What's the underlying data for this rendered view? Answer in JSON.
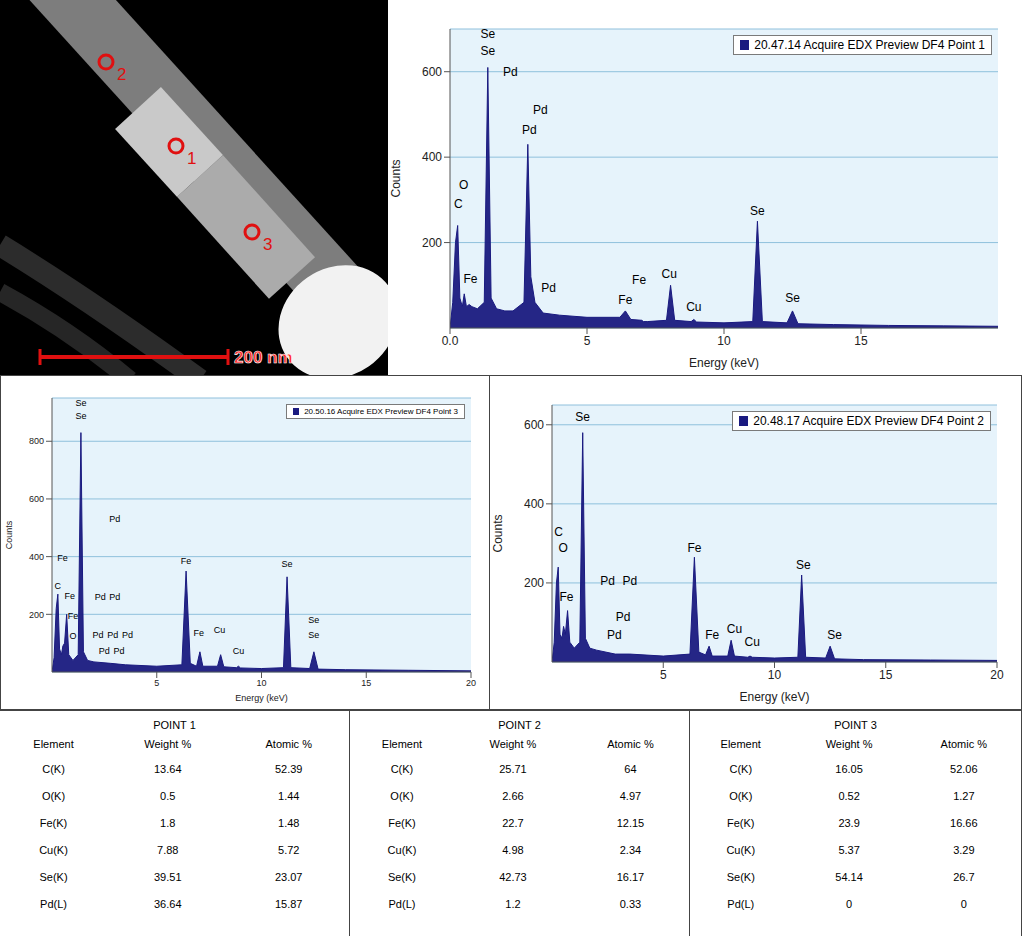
{
  "micrograph": {
    "markers": [
      "1",
      "2",
      "3"
    ],
    "scale_bar": "200 nm"
  },
  "chart_data": [
    {
      "type": "area",
      "x_label": "Energy (keV)",
      "y_label": "Counts",
      "x": [
        0,
        0.1,
        0.2,
        0.28,
        0.36,
        0.45,
        0.52,
        0.6,
        0.7,
        0.8,
        1.0,
        1.25,
        1.38,
        1.5,
        1.7,
        2.0,
        2.3,
        2.7,
        2.84,
        2.95,
        3.1,
        3.4,
        4.0,
        5.0,
        6.2,
        6.4,
        6.6,
        7.0,
        7.06,
        7.2,
        7.9,
        8.05,
        8.2,
        8.8,
        8.9,
        9.0,
        10.0,
        11.05,
        11.22,
        11.4,
        12.3,
        12.5,
        12.7,
        14.0,
        16.0,
        18.0,
        20.0
      ],
      "series": [
        {
          "name": "20.47.14 Acquire EDX Preview DF4 Point 1",
          "color": "#1a1a80",
          "values": [
            0,
            60,
            200,
            240,
            70,
            50,
            80,
            50,
            55,
            50,
            45,
            60,
            610,
            70,
            45,
            40,
            40,
            60,
            430,
            120,
            60,
            35,
            30,
            25,
            25,
            40,
            20,
            18,
            15,
            15,
            18,
            100,
            18,
            15,
            20,
            14,
            12,
            15,
            250,
            15,
            12,
            40,
            10,
            8,
            6,
            5,
            4
          ]
        }
      ],
      "xlim": [
        0,
        20
      ],
      "xticks": [
        {
          "value": 0,
          "label": "0.0"
        },
        5,
        10,
        15
      ],
      "ylim": [
        0,
        700
      ],
      "yticks": [
        200,
        400,
        600
      ],
      "grid": true,
      "legend": "top right",
      "annotations": [
        {
          "text": "Se",
          "x": 1.38,
          "y": 690
        },
        {
          "text": "Se",
          "x": 1.38,
          "y": 650
        },
        {
          "text": "Pd",
          "x": 2.2,
          "y": 600
        },
        {
          "text": "Pd",
          "x": 3.3,
          "y": 510
        },
        {
          "text": "Pd",
          "x": 2.9,
          "y": 465
        },
        {
          "text": "Pd",
          "x": 3.6,
          "y": 95
        },
        {
          "text": "C",
          "x": 0.3,
          "y": 290
        },
        {
          "text": "O",
          "x": 0.5,
          "y": 335
        },
        {
          "text": "Fe",
          "x": 0.75,
          "y": 115
        },
        {
          "text": "Fe",
          "x": 6.4,
          "y": 65
        },
        {
          "text": "Fe",
          "x": 6.9,
          "y": 112
        },
        {
          "text": "Cu",
          "x": 8.0,
          "y": 128
        },
        {
          "text": "Cu",
          "x": 8.9,
          "y": 50
        },
        {
          "text": "Se",
          "x": 11.22,
          "y": 275
        },
        {
          "text": "Se",
          "x": 12.5,
          "y": 70
        }
      ]
    },
    {
      "type": "area",
      "x_label": "Energy (keV)",
      "y_label": "Counts",
      "x": [
        0,
        0.1,
        0.2,
        0.28,
        0.36,
        0.45,
        0.52,
        0.6,
        0.7,
        0.8,
        1.0,
        1.25,
        1.38,
        1.5,
        1.7,
        2.0,
        2.8,
        3.5,
        5.0,
        6.2,
        6.4,
        6.6,
        6.9,
        7.06,
        7.2,
        7.9,
        8.05,
        8.2,
        8.8,
        8.9,
        9.0,
        10.0,
        11.05,
        11.22,
        11.4,
        12.3,
        12.5,
        12.7,
        14.0,
        17.0,
        20.0
      ],
      "series": [
        {
          "name": "20.50.16 Acquire EDX Preview DF4 Point 3",
          "color": "#1a1a80",
          "values": [
            0,
            50,
            220,
            270,
            80,
            60,
            90,
            100,
            200,
            60,
            40,
            60,
            830,
            70,
            40,
            35,
            30,
            25,
            20,
            25,
            350,
            30,
            20,
            70,
            20,
            20,
            60,
            18,
            15,
            20,
            14,
            12,
            15,
            330,
            15,
            12,
            70,
            10,
            8,
            6,
            4
          ]
        }
      ],
      "xlim": [
        0,
        20
      ],
      "xticks": [
        5,
        10,
        15,
        20
      ],
      "ylim": [
        0,
        950
      ],
      "yticks": [
        200,
        400,
        600,
        800
      ],
      "grid": true,
      "legend": "top right",
      "annotations": [
        {
          "text": "Se",
          "x": 1.38,
          "y": 935
        },
        {
          "text": "Se",
          "x": 1.38,
          "y": 890
        },
        {
          "text": "Pd",
          "x": 3.0,
          "y": 530
        },
        {
          "text": "Pd",
          "x": 2.3,
          "y": 260
        },
        {
          "text": "Pd",
          "x": 3.0,
          "y": 260
        },
        {
          "text": "Pd",
          "x": 2.2,
          "y": 130
        },
        {
          "text": "Pd",
          "x": 2.9,
          "y": 130
        },
        {
          "text": "Pd",
          "x": 3.6,
          "y": 130
        },
        {
          "text": "Pd",
          "x": 2.5,
          "y": 75
        },
        {
          "text": "Pd",
          "x": 3.2,
          "y": 75
        },
        {
          "text": "Fe",
          "x": 0.5,
          "y": 395
        },
        {
          "text": "C",
          "x": 0.28,
          "y": 300
        },
        {
          "text": "Fe",
          "x": 0.85,
          "y": 265
        },
        {
          "text": "Fe",
          "x": 1.0,
          "y": 195
        },
        {
          "text": "O",
          "x": 1.0,
          "y": 125
        },
        {
          "text": "Fe",
          "x": 6.4,
          "y": 385
        },
        {
          "text": "Fe",
          "x": 7.0,
          "y": 135
        },
        {
          "text": "Cu",
          "x": 8.0,
          "y": 145
        },
        {
          "text": "Cu",
          "x": 8.9,
          "y": 72
        },
        {
          "text": "Se",
          "x": 11.22,
          "y": 375
        },
        {
          "text": "Se",
          "x": 12.5,
          "y": 180
        },
        {
          "text": "Se",
          "x": 12.5,
          "y": 130
        }
      ]
    },
    {
      "type": "area",
      "x_label": "Energy (keV)",
      "y_label": "Counts",
      "x": [
        0,
        0.1,
        0.2,
        0.28,
        0.36,
        0.45,
        0.52,
        0.6,
        0.7,
        0.8,
        1.0,
        1.25,
        1.38,
        1.5,
        1.7,
        2.0,
        2.84,
        3.5,
        5.0,
        6.2,
        6.4,
        6.6,
        6.9,
        7.06,
        7.2,
        7.9,
        8.05,
        8.2,
        8.8,
        8.9,
        9.0,
        10.0,
        11.05,
        11.22,
        11.4,
        12.3,
        12.5,
        12.7,
        14.0,
        17.0,
        20.0
      ],
      "series": [
        {
          "name": "20.48.17 Acquire EDX Preview DF4 Point 2",
          "color": "#1a1a80",
          "values": [
            0,
            50,
            200,
            240,
            70,
            60,
            90,
            70,
            130,
            50,
            35,
            50,
            580,
            60,
            35,
            30,
            20,
            20,
            15,
            20,
            265,
            25,
            18,
            40,
            15,
            15,
            55,
            15,
            12,
            15,
            12,
            10,
            12,
            220,
            12,
            10,
            40,
            8,
            6,
            5,
            4
          ]
        }
      ],
      "xlim": [
        0,
        20
      ],
      "xticks": [
        5,
        10,
        15,
        20
      ],
      "ylim": [
        0,
        650
      ],
      "yticks": [
        200,
        400,
        600
      ],
      "grid": true,
      "legend": "top right",
      "annotations": [
        {
          "text": "Se",
          "x": 1.38,
          "y": 620
        },
        {
          "text": "C",
          "x": 0.3,
          "y": 330
        },
        {
          "text": "O",
          "x": 0.5,
          "y": 290
        },
        {
          "text": "Fe",
          "x": 0.65,
          "y": 165
        },
        {
          "text": "Pd",
          "x": 2.5,
          "y": 205
        },
        {
          "text": "Pd",
          "x": 3.5,
          "y": 205
        },
        {
          "text": "Pd",
          "x": 3.2,
          "y": 115
        },
        {
          "text": "Pd",
          "x": 2.8,
          "y": 68
        },
        {
          "text": "Fe",
          "x": 6.4,
          "y": 290
        },
        {
          "text": "Fe",
          "x": 7.2,
          "y": 68
        },
        {
          "text": "Cu",
          "x": 8.2,
          "y": 83
        },
        {
          "text": "Cu",
          "x": 9.0,
          "y": 50
        },
        {
          "text": "Se",
          "x": 11.3,
          "y": 245
        },
        {
          "text": "Se",
          "x": 12.7,
          "y": 70
        }
      ]
    }
  ],
  "tables": [
    {
      "title": "POINT 1",
      "columns": [
        "Element",
        "Weight %",
        "Atomic %"
      ],
      "rows": [
        [
          "C(K)",
          "13.64",
          "52.39"
        ],
        [
          "O(K)",
          "0.5",
          "1.44"
        ],
        [
          "Fe(K)",
          "1.8",
          "1.48"
        ],
        [
          "Cu(K)",
          "7.88",
          "5.72"
        ],
        [
          "Se(K)",
          "39.51",
          "23.07"
        ],
        [
          "Pd(L)",
          "36.64",
          "15.87"
        ]
      ]
    },
    {
      "title": "POINT 2",
      "columns": [
        "Element",
        "Weight %",
        "Atomic %"
      ],
      "rows": [
        [
          "C(K)",
          "25.71",
          "64"
        ],
        [
          "O(K)",
          "2.66",
          "4.97"
        ],
        [
          "Fe(K)",
          "22.7",
          "12.15"
        ],
        [
          "Cu(K)",
          "4.98",
          "2.34"
        ],
        [
          "Se(K)",
          "42.73",
          "16.17"
        ],
        [
          "Pd(L)",
          "1.2",
          "0.33"
        ]
      ]
    },
    {
      "title": "POINT 3",
      "columns": [
        "Element",
        "Weight %",
        "Atomic %"
      ],
      "rows": [
        [
          "C(K)",
          "16.05",
          "52.06"
        ],
        [
          "O(K)",
          "0.52",
          "1.27"
        ],
        [
          "Fe(K)",
          "23.9",
          "16.66"
        ],
        [
          "Cu(K)",
          "5.37",
          "3.29"
        ],
        [
          "Se(K)",
          "54.14",
          "26.7"
        ],
        [
          "Pd(L)",
          "0",
          "0"
        ]
      ]
    }
  ]
}
